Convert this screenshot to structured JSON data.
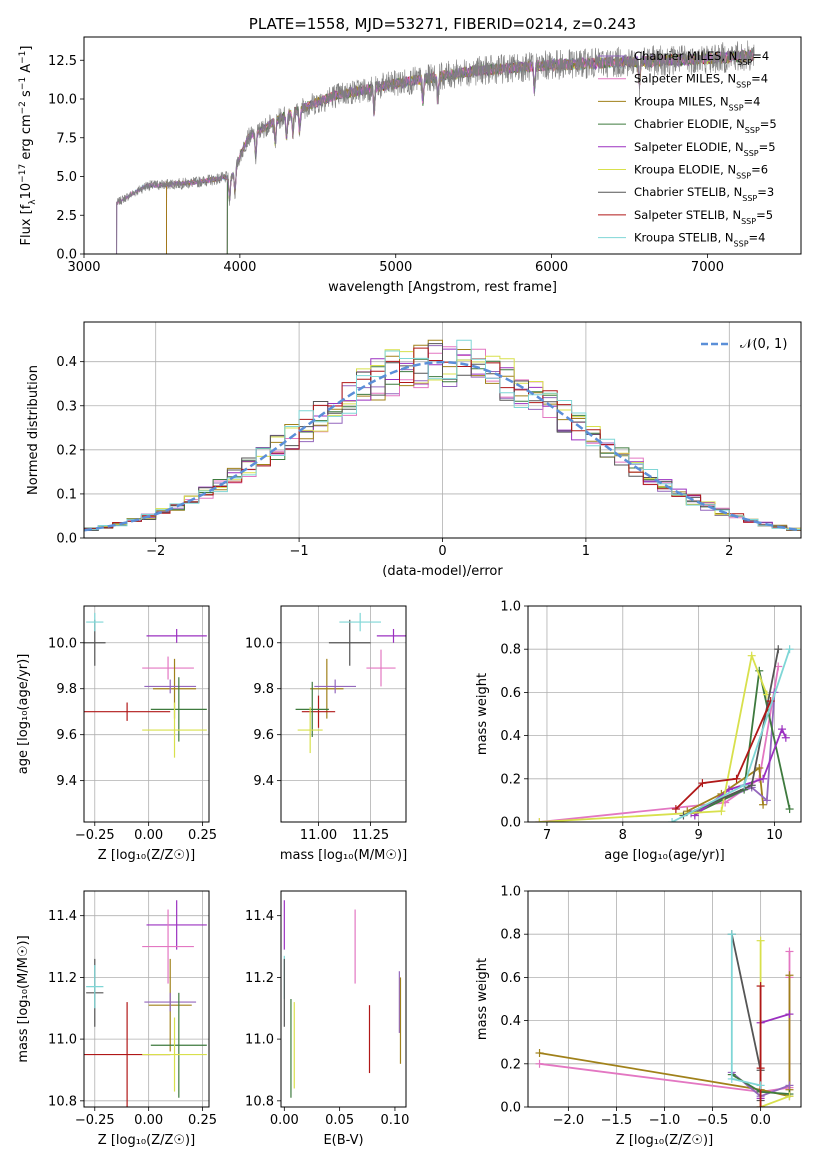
{
  "colors": {
    "Chabrier MILES": "#9467bd",
    "Salpeter MILES": "#e377c2",
    "Kroupa MILES": "#a0811a",
    "Chabrier ELODIE": "#3e7a3e",
    "Salpeter ELODIE": "#9b30c0",
    "Kroupa ELODIE": "#d8e04c",
    "Chabrier STELIB": "#555555",
    "Salpeter STELIB": "#b01818",
    "Kroupa STELIB": "#7fd6d6",
    "normal": "#5b8fd8"
  },
  "chart_data": [
    {
      "id": "spectrum",
      "type": "line",
      "title": "PLATE=1558, MJD=53271, FIBERID=0214, z=0.243",
      "xlabel": "wavelength [Angstrom, rest frame]",
      "ylabel_parts": [
        "Flux [f",
        "λ",
        "10",
        "−17",
        " erg cm",
        "−2",
        " s",
        "−1",
        " A",
        "−1",
        "]"
      ],
      "xlim": [
        3000,
        7600
      ],
      "ylim": [
        0,
        14
      ],
      "xticks": [
        3000,
        4000,
        5000,
        6000,
        7000
      ],
      "xtick_labels": [
        "3000",
        "4000",
        "5000",
        "6000",
        "7000"
      ],
      "yticks": [
        0,
        2.5,
        5,
        7.5,
        10,
        12.5
      ],
      "ytick_labels": [
        "0.0",
        "2.5",
        "5.0",
        "7.5",
        "10.0",
        "12.5"
      ],
      "grid": false,
      "legend_position": "top-right",
      "legend": [
        {
          "name": "Chabrier MILES",
          "nssp": "4",
          "start": 3210
        },
        {
          "name": "Salpeter MILES",
          "nssp": "4",
          "start": 3210
        },
        {
          "name": "Kroupa MILES",
          "nssp": "4",
          "start": 3530
        },
        {
          "name": "Chabrier ELODIE",
          "nssp": "5",
          "start": 3920
        },
        {
          "name": "Salpeter ELODIE",
          "nssp": "5",
          "start": 3920
        },
        {
          "name": "Kroupa ELODIE",
          "nssp": "6",
          "start": 3920
        },
        {
          "name": "Chabrier STELIB",
          "nssp": "3",
          "start": 3210
        },
        {
          "name": "Salpeter STELIB",
          "nssp": "5",
          "start": 3530
        },
        {
          "name": "Kroupa STELIB",
          "nssp": "4",
          "start": 3210
        }
      ],
      "continuum": [
        [
          3210,
          3.3
        ],
        [
          3400,
          4.4
        ],
        [
          3700,
          4.6
        ],
        [
          3950,
          5.0
        ],
        [
          4050,
          7.5
        ],
        [
          4300,
          9.0
        ],
        [
          4600,
          10.2
        ],
        [
          5000,
          11.0
        ],
        [
          5500,
          11.8
        ],
        [
          6000,
          12.2
        ],
        [
          6500,
          12.4
        ],
        [
          7000,
          12.6
        ],
        [
          7300,
          12.8
        ]
      ],
      "data_start": 3210,
      "data_end": 7300
    },
    {
      "id": "residuals",
      "type": "histogram",
      "xlabel": "(data-model)/error",
      "ylabel": "Normed distribution",
      "xlim": [
        -2.5,
        2.5
      ],
      "ylim": [
        0,
        0.49
      ],
      "xticks": [
        -2,
        -1,
        0,
        1,
        2
      ],
      "xtick_labels": [
        "−2",
        "−1",
        "0",
        "1",
        "2"
      ],
      "yticks": [
        0,
        0.1,
        0.2,
        0.3,
        0.4
      ],
      "ytick_labels": [
        "0.0",
        "0.1",
        "0.2",
        "0.3",
        "0.4"
      ],
      "grid": true,
      "legend_position": "top-right",
      "legend_label": "𝒩(0, 1)",
      "bin_width": 0.1,
      "bin_start": -2.5,
      "bins": 50
    },
    {
      "id": "age-vs-Z",
      "type": "errorbar",
      "xlabel": "Z [log₁₀(Z/Z☉)]",
      "ylabel": "age  [log₁₀(age/yr)]",
      "xlim": [
        -0.3,
        0.28
      ],
      "ylim": [
        9.22,
        10.16
      ],
      "xticks": [
        -0.25,
        0,
        0.25
      ],
      "xtick_labels": [
        "−0.25",
        "0.00",
        "0.25"
      ],
      "yticks": [
        9.4,
        9.6,
        9.8,
        10.0
      ],
      "ytick_labels": [
        "9.4",
        "9.6",
        "9.8",
        "10.0"
      ],
      "grid": true,
      "points": [
        {
          "s": "Chabrier STELIB",
          "x": -0.25,
          "xe": 0.05,
          "y": 10.0,
          "ye": 0.1
        },
        {
          "s": "Kroupa STELIB",
          "x": -0.25,
          "xe": 0.04,
          "y": 10.09,
          "ye": 0.04
        },
        {
          "s": "Salpeter ELODIE",
          "x": 0.13,
          "xe": 0.14,
          "y": 10.03,
          "ye": 0.03
        },
        {
          "s": "Salpeter MILES",
          "x": 0.09,
          "xe": 0.12,
          "y": 9.89,
          "ye": 0.05
        },
        {
          "s": "Kroupa MILES",
          "x": 0.12,
          "xe": 0.1,
          "y": 9.8,
          "ye": 0.13
        },
        {
          "s": "Chabrier MILES",
          "x": 0.1,
          "xe": 0.12,
          "y": 9.81,
          "ye": 0.03
        },
        {
          "s": "Salpeter STELIB",
          "x": -0.1,
          "xe": 0.2,
          "y": 9.7,
          "ye": 0.04
        },
        {
          "s": "Chabrier ELODIE",
          "x": 0.14,
          "xe": 0.13,
          "y": 9.71,
          "ye": 0.14
        },
        {
          "s": "Kroupa ELODIE",
          "x": 0.12,
          "xe": 0.15,
          "y": 9.62,
          "ye": 0.12
        }
      ]
    },
    {
      "id": "age-vs-mass",
      "type": "errorbar",
      "xlabel": "mass [log₁₀(M/M☉)]",
      "ylabel": "",
      "xlim": [
        10.82,
        11.42
      ],
      "ylim": [
        9.22,
        10.16
      ],
      "xticks": [
        11.0,
        11.25
      ],
      "xtick_labels": [
        "11.00",
        "11.25"
      ],
      "yticks": [
        9.4,
        9.6,
        9.8,
        10.0
      ],
      "ytick_labels": [
        "9.4",
        "9.6",
        "9.8",
        "10.0"
      ],
      "grid": true,
      "points": [
        {
          "s": "Chabrier STELIB",
          "x": 11.15,
          "xe": 0.1,
          "y": 10.0,
          "ye": 0.1
        },
        {
          "s": "Kroupa STELIB",
          "x": 11.2,
          "xe": 0.1,
          "y": 10.09,
          "ye": 0.04
        },
        {
          "s": "Salpeter ELODIE",
          "x": 11.36,
          "xe": 0.08,
          "y": 10.03,
          "ye": 0.03
        },
        {
          "s": "Salpeter MILES",
          "x": 11.3,
          "xe": 0.07,
          "y": 9.89,
          "ye": 0.08
        },
        {
          "s": "Kroupa MILES",
          "x": 11.04,
          "xe": 0.08,
          "y": 9.8,
          "ye": 0.13
        },
        {
          "s": "Chabrier MILES",
          "x": 11.08,
          "xe": 0.1,
          "y": 9.81,
          "ye": 0.03
        },
        {
          "s": "Salpeter STELIB",
          "x": 11.0,
          "xe": 0.08,
          "y": 9.7,
          "ye": 0.07
        },
        {
          "s": "Chabrier ELODIE",
          "x": 10.97,
          "xe": 0.08,
          "y": 9.71,
          "ye": 0.12
        },
        {
          "s": "Kroupa ELODIE",
          "x": 10.96,
          "xe": 0.06,
          "y": 9.62,
          "ye": 0.1
        }
      ]
    },
    {
      "id": "mass-weight-vs-age",
      "type": "line",
      "xlabel": "age  [log₁₀(age/yr)]",
      "ylabel": "mass weight",
      "xlim": [
        6.75,
        10.35
      ],
      "ylim": [
        0,
        1
      ],
      "xticks": [
        7,
        8,
        9,
        10
      ],
      "xtick_labels": [
        "7",
        "8",
        "9",
        "10"
      ],
      "yticks": [
        0,
        0.2,
        0.4,
        0.6,
        0.8,
        1.0
      ],
      "ytick_labels": [
        "0.0",
        "0.2",
        "0.4",
        "0.6",
        "0.8",
        "1.0"
      ],
      "grid": true,
      "series": [
        {
          "s": "Salpeter MILES",
          "x": [
            6.9,
            9.35,
            9.8,
            10.05
          ],
          "y": [
            0.0,
            0.09,
            0.2,
            0.72
          ]
        },
        {
          "s": "Kroupa MILES",
          "x": [
            8.85,
            9.3,
            9.8,
            9.85
          ],
          "y": [
            0.05,
            0.13,
            0.25,
            0.08
          ]
        },
        {
          "s": "Chabrier MILES",
          "x": [
            8.9,
            9.7,
            9.9,
            10.0
          ],
          "y": [
            0.04,
            0.16,
            0.1,
            0.6
          ]
        },
        {
          "s": "Chabrier ELODIE",
          "x": [
            8.95,
            9.6,
            9.8,
            10.2
          ],
          "y": [
            0.04,
            0.15,
            0.7,
            0.06
          ]
        },
        {
          "s": "Salpeter ELODIE",
          "x": [
            8.95,
            9.4,
            9.85,
            10.1,
            10.15
          ],
          "y": [
            0.03,
            0.15,
            0.2,
            0.43,
            0.39
          ]
        },
        {
          "s": "Kroupa ELODIE",
          "x": [
            6.9,
            9.3,
            9.7,
            9.9
          ],
          "y": [
            0.0,
            0.05,
            0.77,
            0.59
          ]
        },
        {
          "s": "Chabrier STELIB",
          "x": [
            8.8,
            9.7,
            10.05
          ],
          "y": [
            0.03,
            0.17,
            0.8
          ]
        },
        {
          "s": "Salpeter STELIB",
          "x": [
            8.7,
            9.05,
            9.5,
            9.95
          ],
          "y": [
            0.06,
            0.18,
            0.2,
            0.56
          ]
        },
        {
          "s": "Kroupa STELIB",
          "x": [
            8.65,
            9.6,
            10.2
          ],
          "y": [
            0.0,
            0.17,
            0.8
          ]
        }
      ]
    },
    {
      "id": "mass-vs-Z",
      "type": "errorbar",
      "xlabel": "Z [log₁₀(Z/Z☉)]",
      "ylabel": "mass [log₁₀(M/M☉)]",
      "xlim": [
        -0.3,
        0.28
      ],
      "ylim": [
        10.78,
        11.48
      ],
      "xticks": [
        -0.25,
        0,
        0.25
      ],
      "xtick_labels": [
        "−0.25",
        "0.00",
        "0.25"
      ],
      "yticks": [
        10.8,
        11.0,
        11.2,
        11.4
      ],
      "ytick_labels": [
        "10.8",
        "11.0",
        "11.2",
        "11.4"
      ],
      "grid": true,
      "points": [
        {
          "s": "Chabrier STELIB",
          "x": -0.25,
          "xe": 0.04,
          "y": 11.15,
          "ye": 0.11
        },
        {
          "s": "Kroupa STELIB",
          "x": -0.25,
          "xe": 0.04,
          "y": 11.17,
          "ye": 0.07
        },
        {
          "s": "Salpeter ELODIE",
          "x": 0.13,
          "xe": 0.14,
          "y": 11.37,
          "ye": 0.08
        },
        {
          "s": "Salpeter MILES",
          "x": 0.09,
          "xe": 0.12,
          "y": 11.3,
          "ye": 0.12
        },
        {
          "s": "Kroupa MILES",
          "x": 0.1,
          "xe": 0.1,
          "y": 11.11,
          "ye": 0.15
        },
        {
          "s": "Chabrier MILES",
          "x": 0.1,
          "xe": 0.12,
          "y": 11.12,
          "ye": 0.03
        },
        {
          "s": "Salpeter STELIB",
          "x": -0.1,
          "xe": 0.2,
          "y": 10.95,
          "ye": 0.17
        },
        {
          "s": "Chabrier ELODIE",
          "x": 0.14,
          "xe": 0.13,
          "y": 10.98,
          "ye": 0.17
        },
        {
          "s": "Kroupa ELODIE",
          "x": 0.12,
          "xe": 0.15,
          "y": 10.95,
          "ye": 0.12
        }
      ]
    },
    {
      "id": "mass-vs-EBV",
      "type": "errorbar",
      "xlabel": "E(B-V)",
      "ylabel": "",
      "xlim": [
        -0.003,
        0.11
      ],
      "ylim": [
        10.78,
        11.48
      ],
      "xticks": [
        0.0,
        0.05,
        0.1
      ],
      "xtick_labels": [
        "0.00",
        "0.05",
        "0.10"
      ],
      "yticks": [
        10.8,
        11.0,
        11.2,
        11.4
      ],
      "ytick_labels": [
        "10.8",
        "11.0",
        "11.2",
        "11.4"
      ],
      "grid": false,
      "points": [
        {
          "s": "Salpeter ELODIE",
          "x": 0.0,
          "xe": 0,
          "y": 11.37,
          "ye": 0.08
        },
        {
          "s": "Kroupa STELIB",
          "x": 0.0,
          "xe": 0,
          "y": 11.2,
          "ye": 0.07
        },
        {
          "s": "Chabrier STELIB",
          "x": 0.0,
          "xe": 0,
          "y": 11.15,
          "ye": 0.11
        },
        {
          "s": "Chabrier ELODIE",
          "x": 0.006,
          "xe": 0,
          "y": 10.97,
          "ye": 0.16
        },
        {
          "s": "Kroupa ELODIE",
          "x": 0.009,
          "xe": 0,
          "y": 10.98,
          "ye": 0.14
        },
        {
          "s": "Salpeter MILES",
          "x": 0.064,
          "xe": 0,
          "y": 11.3,
          "ye": 0.12
        },
        {
          "s": "Salpeter STELIB",
          "x": 0.077,
          "xe": 0,
          "y": 11.0,
          "ye": 0.11
        },
        {
          "s": "Chabrier MILES",
          "x": 0.104,
          "xe": 0,
          "y": 11.12,
          "ye": 0.1
        },
        {
          "s": "Kroupa MILES",
          "x": 0.105,
          "xe": 0,
          "y": 11.06,
          "ye": 0.14
        }
      ]
    },
    {
      "id": "mass-weight-vs-Z",
      "type": "line",
      "xlabel": "Z [log₁₀(Z/Z☉)]",
      "ylabel": "mass weight",
      "xlim": [
        -2.42,
        0.42
      ],
      "ylim": [
        0,
        1
      ],
      "xticks": [
        -2.0,
        -1.5,
        -1.0,
        -0.5,
        0.0
      ],
      "xtick_labels": [
        "−2.0",
        "−1.5",
        "−1.0",
        "−0.5",
        "0.0"
      ],
      "yticks": [
        0,
        0.2,
        0.4,
        0.6,
        0.8,
        1.0
      ],
      "ytick_labels": [
        "0.0",
        "0.2",
        "0.4",
        "0.6",
        "0.8",
        "1.0"
      ],
      "grid": true,
      "series": [
        {
          "s": "Salpeter MILES",
          "x": [
            -2.3,
            0.0,
            0.3,
            0.3,
            0.3
          ],
          "y": [
            0.2,
            0.07,
            0.09,
            0.72,
            0.6
          ]
        },
        {
          "s": "Kroupa MILES",
          "x": [
            -2.3,
            0.0,
            0.3,
            0.3,
            0.3
          ],
          "y": [
            0.25,
            0.08,
            0.05,
            0.61,
            0.08
          ]
        },
        {
          "s": "Chabrier MILES",
          "x": [
            -0.3,
            0.0,
            0.3
          ],
          "y": [
            0.16,
            0.05,
            0.1
          ]
        },
        {
          "s": "Chabrier ELODIE",
          "x": [
            -0.3,
            0.0,
            0.3
          ],
          "y": [
            0.15,
            0.07,
            0.06
          ]
        },
        {
          "s": "Salpeter ELODIE",
          "x": [
            0.0,
            0.0,
            0.3
          ],
          "y": [
            0.04,
            0.39,
            0.43
          ]
        },
        {
          "s": "Kroupa ELODIE",
          "x": [
            0.0,
            0.0,
            0.3
          ],
          "y": [
            0.77,
            0.0,
            0.05
          ]
        },
        {
          "s": "Chabrier STELIB",
          "x": [
            -0.3,
            0.0,
            0.0
          ],
          "y": [
            0.8,
            0.17,
            0.03
          ]
        },
        {
          "s": "Salpeter STELIB",
          "x": [
            0.0,
            0.0,
            0.0
          ],
          "y": [
            0.0,
            0.18,
            0.56
          ]
        },
        {
          "s": "Kroupa STELIB",
          "x": [
            -0.3,
            -0.3,
            0.0
          ],
          "y": [
            0.8,
            0.13,
            0.1
          ]
        }
      ]
    }
  ]
}
